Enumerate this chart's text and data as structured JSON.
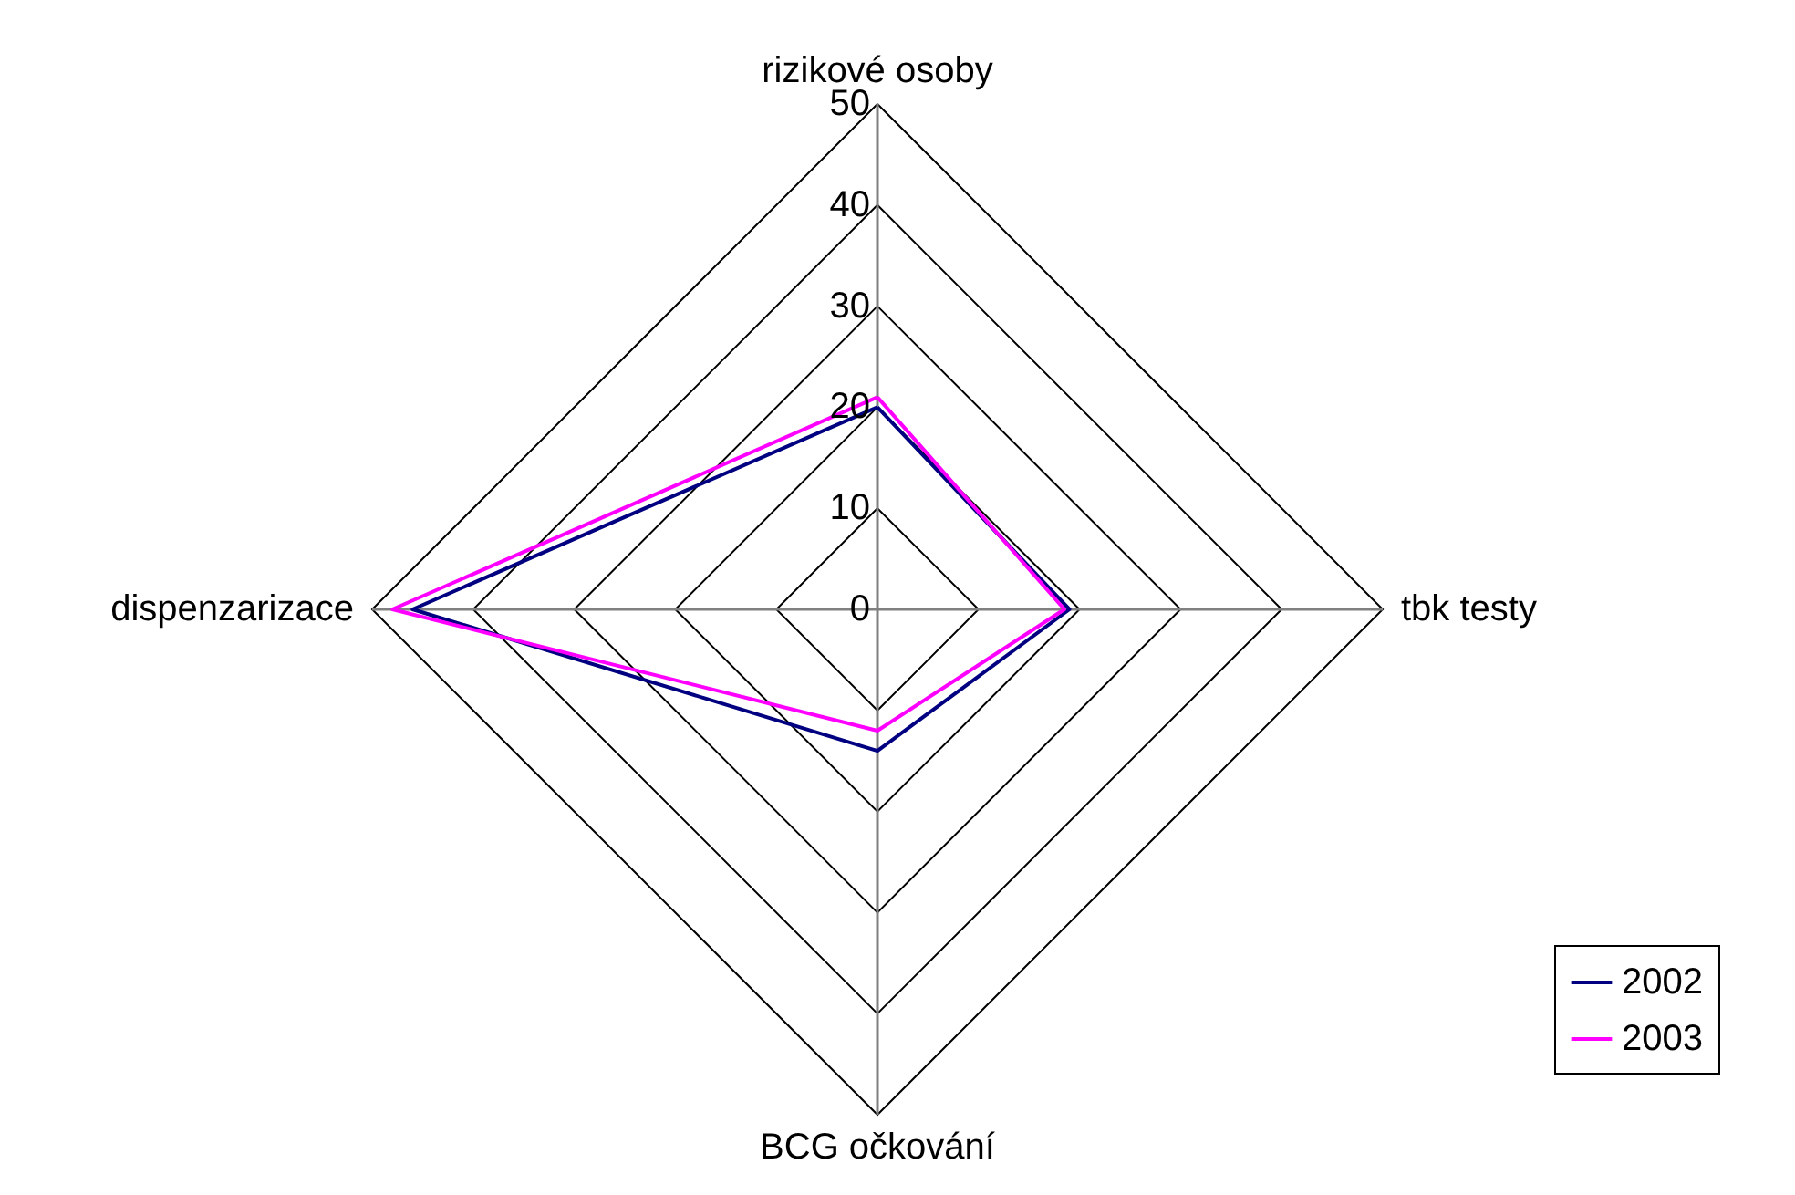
{
  "chart_data": {
    "type": "radar",
    "categories": [
      "rizikové osoby",
      "tbk testy",
      "BCG očkování",
      "dispenzarizace"
    ],
    "series": [
      {
        "name": "2002",
        "color": "#000080",
        "values": [
          20,
          19,
          14,
          46
        ]
      },
      {
        "name": "2003",
        "color": "#ff00ff",
        "values": [
          21,
          18.5,
          12,
          48
        ]
      }
    ],
    "ylim": [
      0,
      50
    ],
    "yticks": [
      0,
      10,
      20,
      30,
      40,
      50
    ],
    "grid": true,
    "legend": "bottom right"
  }
}
